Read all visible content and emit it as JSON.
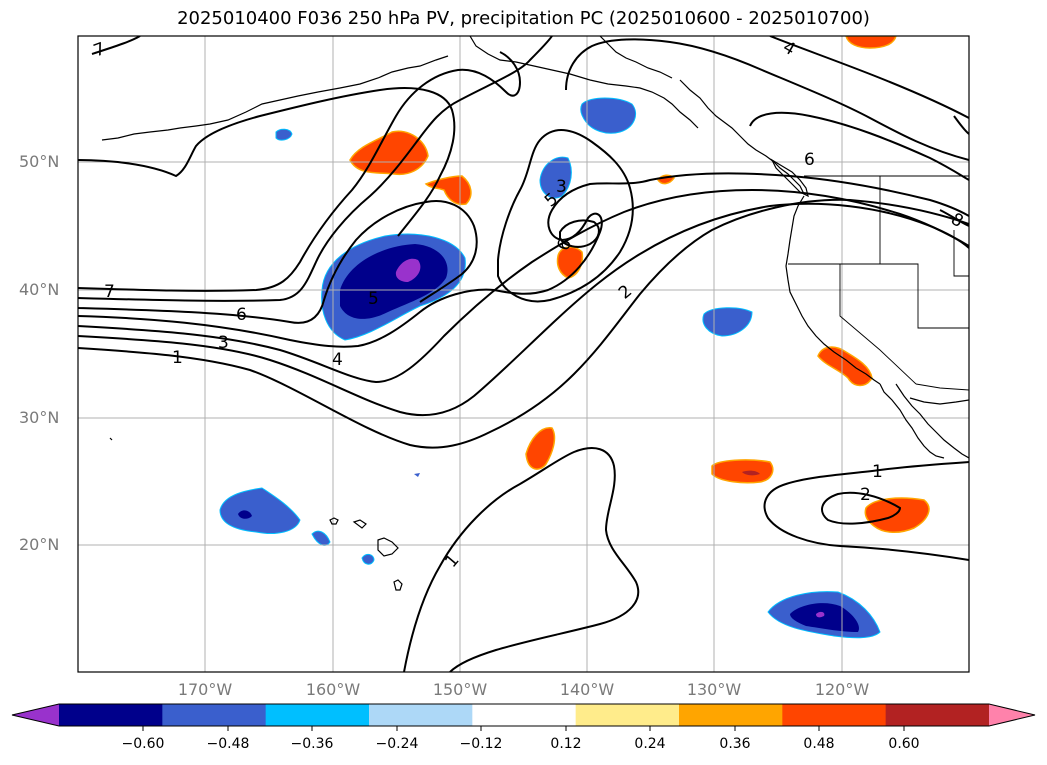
{
  "title": "2025010400 F036 250 hPa PV, precipitation PC (2025010600 - 2025010700)",
  "lat_labels": [
    "50°N",
    "40°N",
    "30°N",
    "20°N"
  ],
  "lon_labels": [
    "170°W",
    "160°W",
    "150°W",
    "140°W",
    "130°W",
    "120°W"
  ],
  "colorbar": {
    "ticks": [
      "−0.60",
      "−0.48",
      "−0.36",
      "−0.24",
      "−0.12",
      "0.12",
      "0.24",
      "0.36",
      "0.48",
      "0.60"
    ],
    "colors": [
      "#9932cc",
      "#00008b",
      "#3a5fcd",
      "#00bfff",
      "#add8f7",
      "#ffffff",
      "#ffec8b",
      "#ffa500",
      "#ff4500",
      "#b22222",
      "#ff82ab"
    ]
  },
  "contour_labels": [
    "7",
    "7",
    "6",
    "5",
    "3",
    "1",
    "6",
    "3",
    "4",
    "5",
    "6",
    "2",
    "1",
    "2",
    "1",
    "4",
    "8"
  ],
  "colors": {
    "contour": "#000000",
    "grid": "#b0b0b0",
    "coast": "#000000"
  }
}
